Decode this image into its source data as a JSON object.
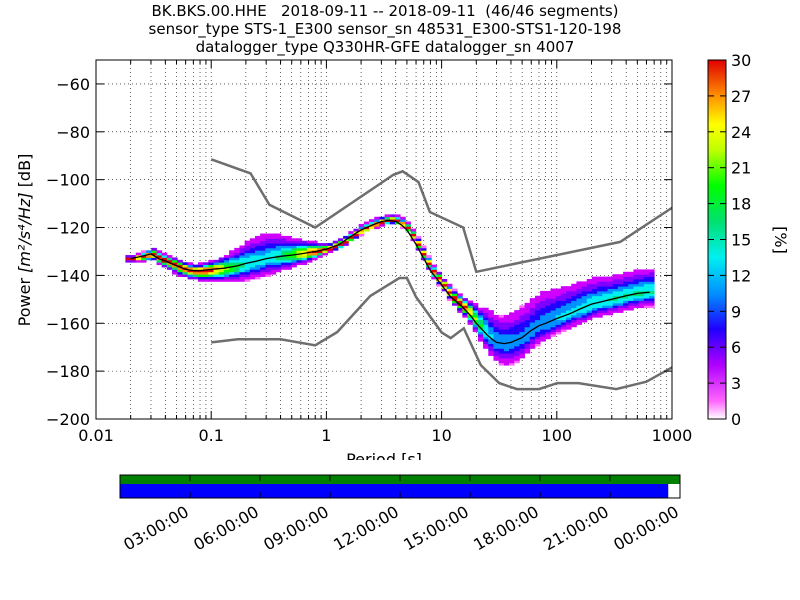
{
  "header": {
    "title_line1": "BK.BKS.00.HHE   2018-09-11 -- 2018-09-11  (46/46 segments)",
    "title_line2": "sensor_type STS-1_E300 sensor_sn 48531_E300-STS1-120-198",
    "title_line3": "datalogger_type Q330HR-GFE datalogger_sn 4007"
  },
  "chart_data": {
    "type": "heatmap",
    "xlabel": "Period [s]",
    "ylabel_prefix": "Power ",
    "ylabel_math": "[m²/s⁴/Hz]",
    "ylabel_suffix": " [dB]",
    "xscale": "log",
    "xlim": [
      0.01,
      1000
    ],
    "ylim": [
      -200,
      -50
    ],
    "xticks": [
      0.01,
      0.1,
      1,
      10,
      100,
      1000
    ],
    "xtick_labels": [
      "0.01",
      "0.1",
      "1",
      "10",
      "100",
      "1000"
    ],
    "yticks": [
      -200,
      -180,
      -160,
      -140,
      -120,
      -100,
      -80,
      -60
    ],
    "ytick_labels": [
      "−200",
      "−180",
      "−160",
      "−140",
      "−120",
      "−100",
      "−80",
      "−60"
    ],
    "grid": true,
    "colorbar": {
      "label": "[%]",
      "range": [
        0,
        30
      ],
      "ticks": [
        0,
        3,
        6,
        9,
        12,
        15,
        18,
        21,
        24,
        27,
        30
      ],
      "tick_labels": [
        "0",
        "3",
        "6",
        "9",
        "12",
        "15",
        "18",
        "21",
        "24",
        "27",
        "30"
      ]
    },
    "noise_models": {
      "high": {
        "x": [
          0.1,
          0.22,
          0.32,
          0.8,
          3.8,
          4.6,
          6.3,
          7.9,
          15.4,
          20,
          354.8,
          10000
        ],
        "y": [
          -91.5,
          -97.4,
          -110.5,
          -120,
          -98,
          -96.5,
          -101,
          -113.5,
          -120,
          -138.5,
          -126,
          -80.1
        ]
      },
      "low": {
        "x": [
          0.1,
          0.17,
          0.4,
          0.8,
          1.24,
          2.4,
          4.3,
          5.0,
          6.0,
          10.0,
          12.0,
          15.6,
          21.9,
          31.6,
          45,
          70,
          101,
          154,
          328,
          600,
          10000
        ],
        "y": [
          -168,
          -166.7,
          -166.7,
          -169.2,
          -163.7,
          -148.6,
          -141.1,
          -141.1,
          -149,
          -163.8,
          -166.2,
          -162.1,
          -177.5,
          -185,
          -187.5,
          -187.5,
          -185,
          -185,
          -187.5,
          -184.4,
          -151.5
        ]
      }
    },
    "ppsd_median": {
      "x": [
        0.02,
        0.025,
        0.03,
        0.035,
        0.04,
        0.05,
        0.06,
        0.07,
        0.08,
        0.1,
        0.13,
        0.17,
        0.2,
        0.25,
        0.3,
        0.4,
        0.5,
        0.6,
        0.8,
        1,
        1.3,
        1.6,
        2,
        2.5,
        3,
        3.5,
        4,
        4.5,
        5,
        6,
        7,
        8,
        10,
        12,
        15,
        18,
        20,
        25,
        28,
        30,
        35,
        40,
        50,
        60,
        70,
        80,
        100,
        130,
        160,
        200,
        300,
        400,
        500,
        640
      ],
      "y": [
        -133,
        -132,
        -131,
        -133,
        -134,
        -136,
        -137.5,
        -138,
        -138,
        -137.5,
        -137,
        -136,
        -135,
        -134,
        -133,
        -132,
        -131.5,
        -131,
        -130,
        -129,
        -127,
        -124,
        -121,
        -119,
        -117.5,
        -117,
        -117.5,
        -119,
        -121,
        -127,
        -133,
        -138,
        -144,
        -149,
        -153,
        -157,
        -160,
        -165,
        -167,
        -168,
        -168.5,
        -168,
        -166,
        -163,
        -161,
        -160,
        -158,
        -156,
        -154,
        -152,
        -150,
        -148.5,
        -147.5,
        -147
      ]
    },
    "ppsd_spread": {
      "x": [
        0.02,
        0.03,
        0.05,
        0.07,
        0.1,
        0.15,
        0.2,
        0.3,
        0.5,
        0.8,
        1,
        1.5,
        2,
        3,
        4,
        5,
        6,
        8,
        10,
        15,
        20,
        25,
        30,
        40,
        50,
        70,
        100,
        150,
        200,
        300,
        640
      ],
      "upper_dev": [
        1,
        2,
        2,
        2,
        3,
        6,
        9,
        10,
        6,
        3,
        2,
        2,
        2,
        2,
        2,
        2,
        2,
        2,
        2,
        3,
        6,
        10,
        10,
        12,
        13,
        13,
        12,
        11,
        10,
        9,
        9
      ],
      "lower_dev": [
        1,
        2,
        3,
        3,
        4,
        5,
        6,
        6,
        4,
        2,
        1,
        1,
        1,
        1,
        1,
        1,
        2,
        2,
        2,
        3,
        5,
        7,
        8,
        8,
        7,
        6,
        5,
        5,
        5,
        5,
        5
      ]
    },
    "timeline": {
      "tick_labels": [
        "03:00:00",
        "06:00:00",
        "09:00:00",
        "12:00:00",
        "15:00:00",
        "18:00:00",
        "21:00:00",
        "00:00:00"
      ],
      "data_coverage_fraction": 1.0,
      "used_fraction": 0.979,
      "top_color": "#008000",
      "bottom_color": "#0000ff"
    }
  },
  "colors": {
    "noise_model": "#6e6e6e",
    "median": "#000000"
  }
}
